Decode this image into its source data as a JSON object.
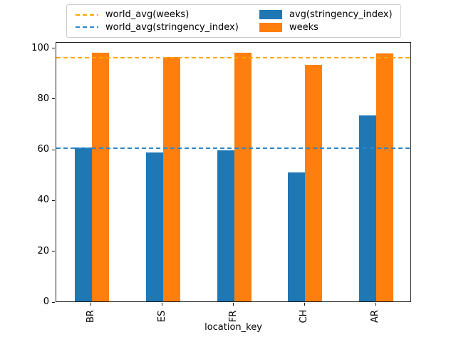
{
  "figure": {
    "background": "#ffffff",
    "axes_border_color": "#1a1a1a"
  },
  "chart_data": {
    "type": "bar",
    "title": "",
    "xlabel": "location_key",
    "ylabel": "",
    "categories": [
      "BR",
      "ES",
      "FR",
      "CH",
      "AR"
    ],
    "series": [
      {
        "name": "avg(stringency_index)",
        "color": "#1f77b4",
        "values": [
          60.7,
          58.6,
          59.6,
          50.7,
          73.3
        ]
      },
      {
        "name": "weeks",
        "color": "#ff7f0e",
        "values": [
          97.9,
          96.3,
          97.9,
          93.1,
          97.6
        ]
      }
    ],
    "hlines": [
      {
        "name": "world_avg(weeks)",
        "color": "#ffa500",
        "y": 96.4,
        "style": "dashed"
      },
      {
        "name": "world_avg(stringency_index)",
        "color": "#2e86c9",
        "y": 61.0,
        "style": "dashed"
      }
    ],
    "ylim": [
      0,
      102.4
    ],
    "yticks": [
      0,
      20,
      40,
      60,
      80,
      100
    ],
    "grid": false,
    "legend_position": "top, above axes, 2 columns",
    "x_tick_rotation": 90
  }
}
